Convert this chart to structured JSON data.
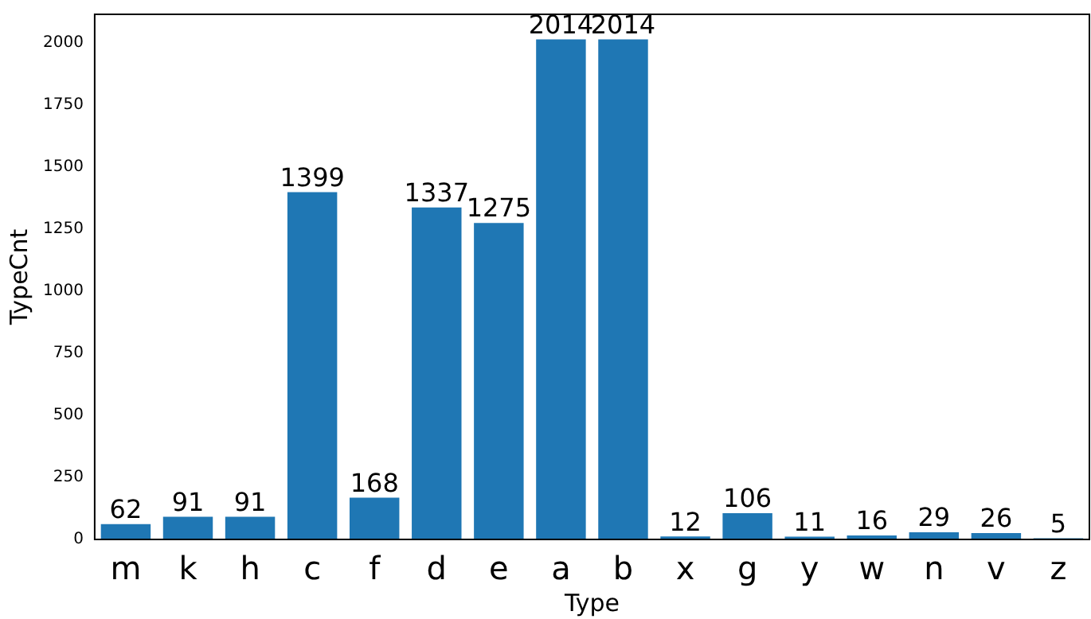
{
  "chart_data": {
    "type": "bar",
    "xlabel": "Type",
    "ylabel": "TypeCnt",
    "categories": [
      "m",
      "k",
      "h",
      "c",
      "f",
      "d",
      "e",
      "a",
      "b",
      "x",
      "g",
      "y",
      "w",
      "n",
      "v",
      "z"
    ],
    "values": [
      62,
      91,
      91,
      1399,
      168,
      1337,
      1275,
      2014,
      2014,
      12,
      106,
      11,
      16,
      29,
      26,
      5
    ],
    "color": "#1f77b4",
    "ylim": [
      0,
      2115
    ],
    "yticks": [
      0,
      250,
      500,
      750,
      1000,
      1250,
      1500,
      1750,
      2000
    ],
    "data_labels": true
  }
}
